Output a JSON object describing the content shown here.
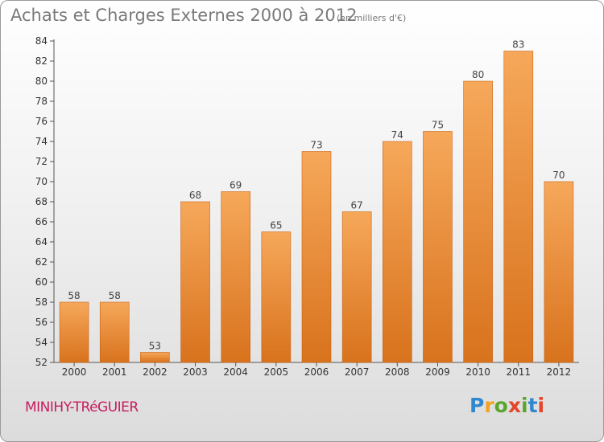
{
  "header": {
    "title": "Achats et Charges Externes 2000 à 2012",
    "unit": "(en milliers d'€)"
  },
  "footer": {
    "city": "MINIHY-TRéGUIER",
    "brand": "Proxiti"
  },
  "colors": {
    "bar_light": "#f6a85a",
    "bar_dark": "#d8721d",
    "city_text": "#c71c5e",
    "brand_letters": [
      "#2f88cf",
      "#f0a323",
      "#5aa62c",
      "#e3462a",
      "#5aa62c",
      "#2f88cf",
      "#e3462a"
    ]
  },
  "chart_data": {
    "type": "bar",
    "categories": [
      "2000",
      "2001",
      "2002",
      "2003",
      "2004",
      "2005",
      "2006",
      "2007",
      "2008",
      "2009",
      "2010",
      "2011",
      "2012"
    ],
    "values": [
      58,
      58,
      53,
      68,
      69,
      65,
      73,
      67,
      74,
      75,
      80,
      83,
      70
    ],
    "title": "Achats et Charges Externes 2000 à 2012",
    "ylim": [
      52,
      84
    ],
    "yticks": [
      52,
      54,
      56,
      58,
      60,
      62,
      64,
      66,
      68,
      70,
      72,
      74,
      76,
      78,
      80,
      82,
      84
    ],
    "grid": false,
    "data_labels": true
  }
}
